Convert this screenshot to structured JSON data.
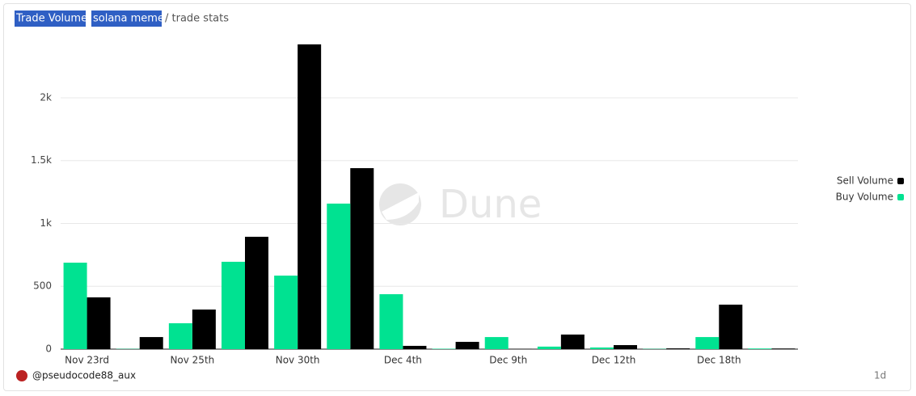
{
  "chart_data": {
    "type": "bar",
    "title_parts": [
      "Trade Volume",
      "solana meme"
    ],
    "subtitle": "/ trade stats",
    "watermark": "Dune",
    "author": "@pseudocode88_aux",
    "interval": "1d",
    "categories": [
      "Nov 23rd",
      null,
      "Nov 25th",
      null,
      "Nov 30th",
      null,
      "Dec 4th",
      null,
      "Dec 9th",
      null,
      "Dec 12th",
      null,
      "Dec 18th",
      null
    ],
    "series": [
      {
        "name": "Sell Volume",
        "color": "#000000",
        "values": [
          412,
          96,
          315,
          894,
          2425,
          1440,
          26,
          58,
          2,
          116,
          32,
          6,
          354,
          5
        ]
      },
      {
        "name": "Buy Volume",
        "color": "#00e291",
        "values": [
          688,
          2,
          206,
          695,
          585,
          1158,
          437,
          3,
          96,
          20,
          13,
          2,
          96,
          5
        ]
      }
    ],
    "ylim": [
      0,
      2450
    ],
    "yticks": [
      0,
      500,
      {
        "value": 1000,
        "label": "1k"
      },
      {
        "value": 1500,
        "label": "1.5k"
      },
      {
        "value": 2000,
        "label": "2k"
      }
    ],
    "grid": true,
    "legend": "right"
  }
}
